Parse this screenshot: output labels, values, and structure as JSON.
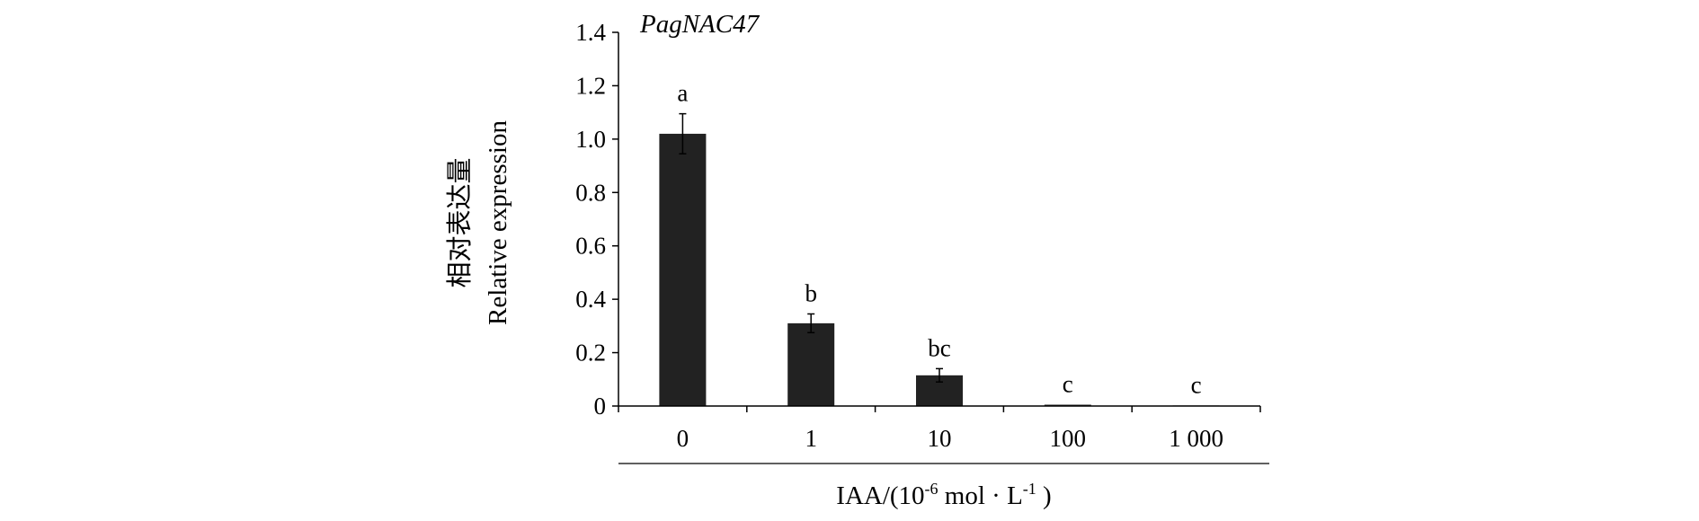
{
  "chart_data": {
    "type": "bar",
    "title": "PagNAC47",
    "ylabel_cn": "相对表达量",
    "ylabel": "Relative expression",
    "xlabel_parts": {
      "pre": "IAA/(10",
      "sup1": "-6",
      "mid": " mol · L",
      "sup2": "-1",
      "post": " )"
    },
    "categories": [
      "0",
      "1",
      "10",
      "100",
      "1 000"
    ],
    "values": [
      1.02,
      0.31,
      0.115,
      0.005,
      0.002
    ],
    "errors": [
      0.075,
      0.035,
      0.025,
      0.0,
      0.0
    ],
    "significance": [
      "a",
      "b",
      "bc",
      "c",
      "c"
    ],
    "ylim": [
      0,
      1.4
    ],
    "yticks": [
      0,
      0.2,
      0.4,
      0.6,
      0.8,
      1.0,
      1.2,
      1.4
    ],
    "ytick_labels": [
      "0",
      "0.2",
      "0.4",
      "0.6",
      "0.8",
      "1.0",
      "1.2",
      "1.4"
    ],
    "grid": false,
    "bar_color": "#222222"
  }
}
